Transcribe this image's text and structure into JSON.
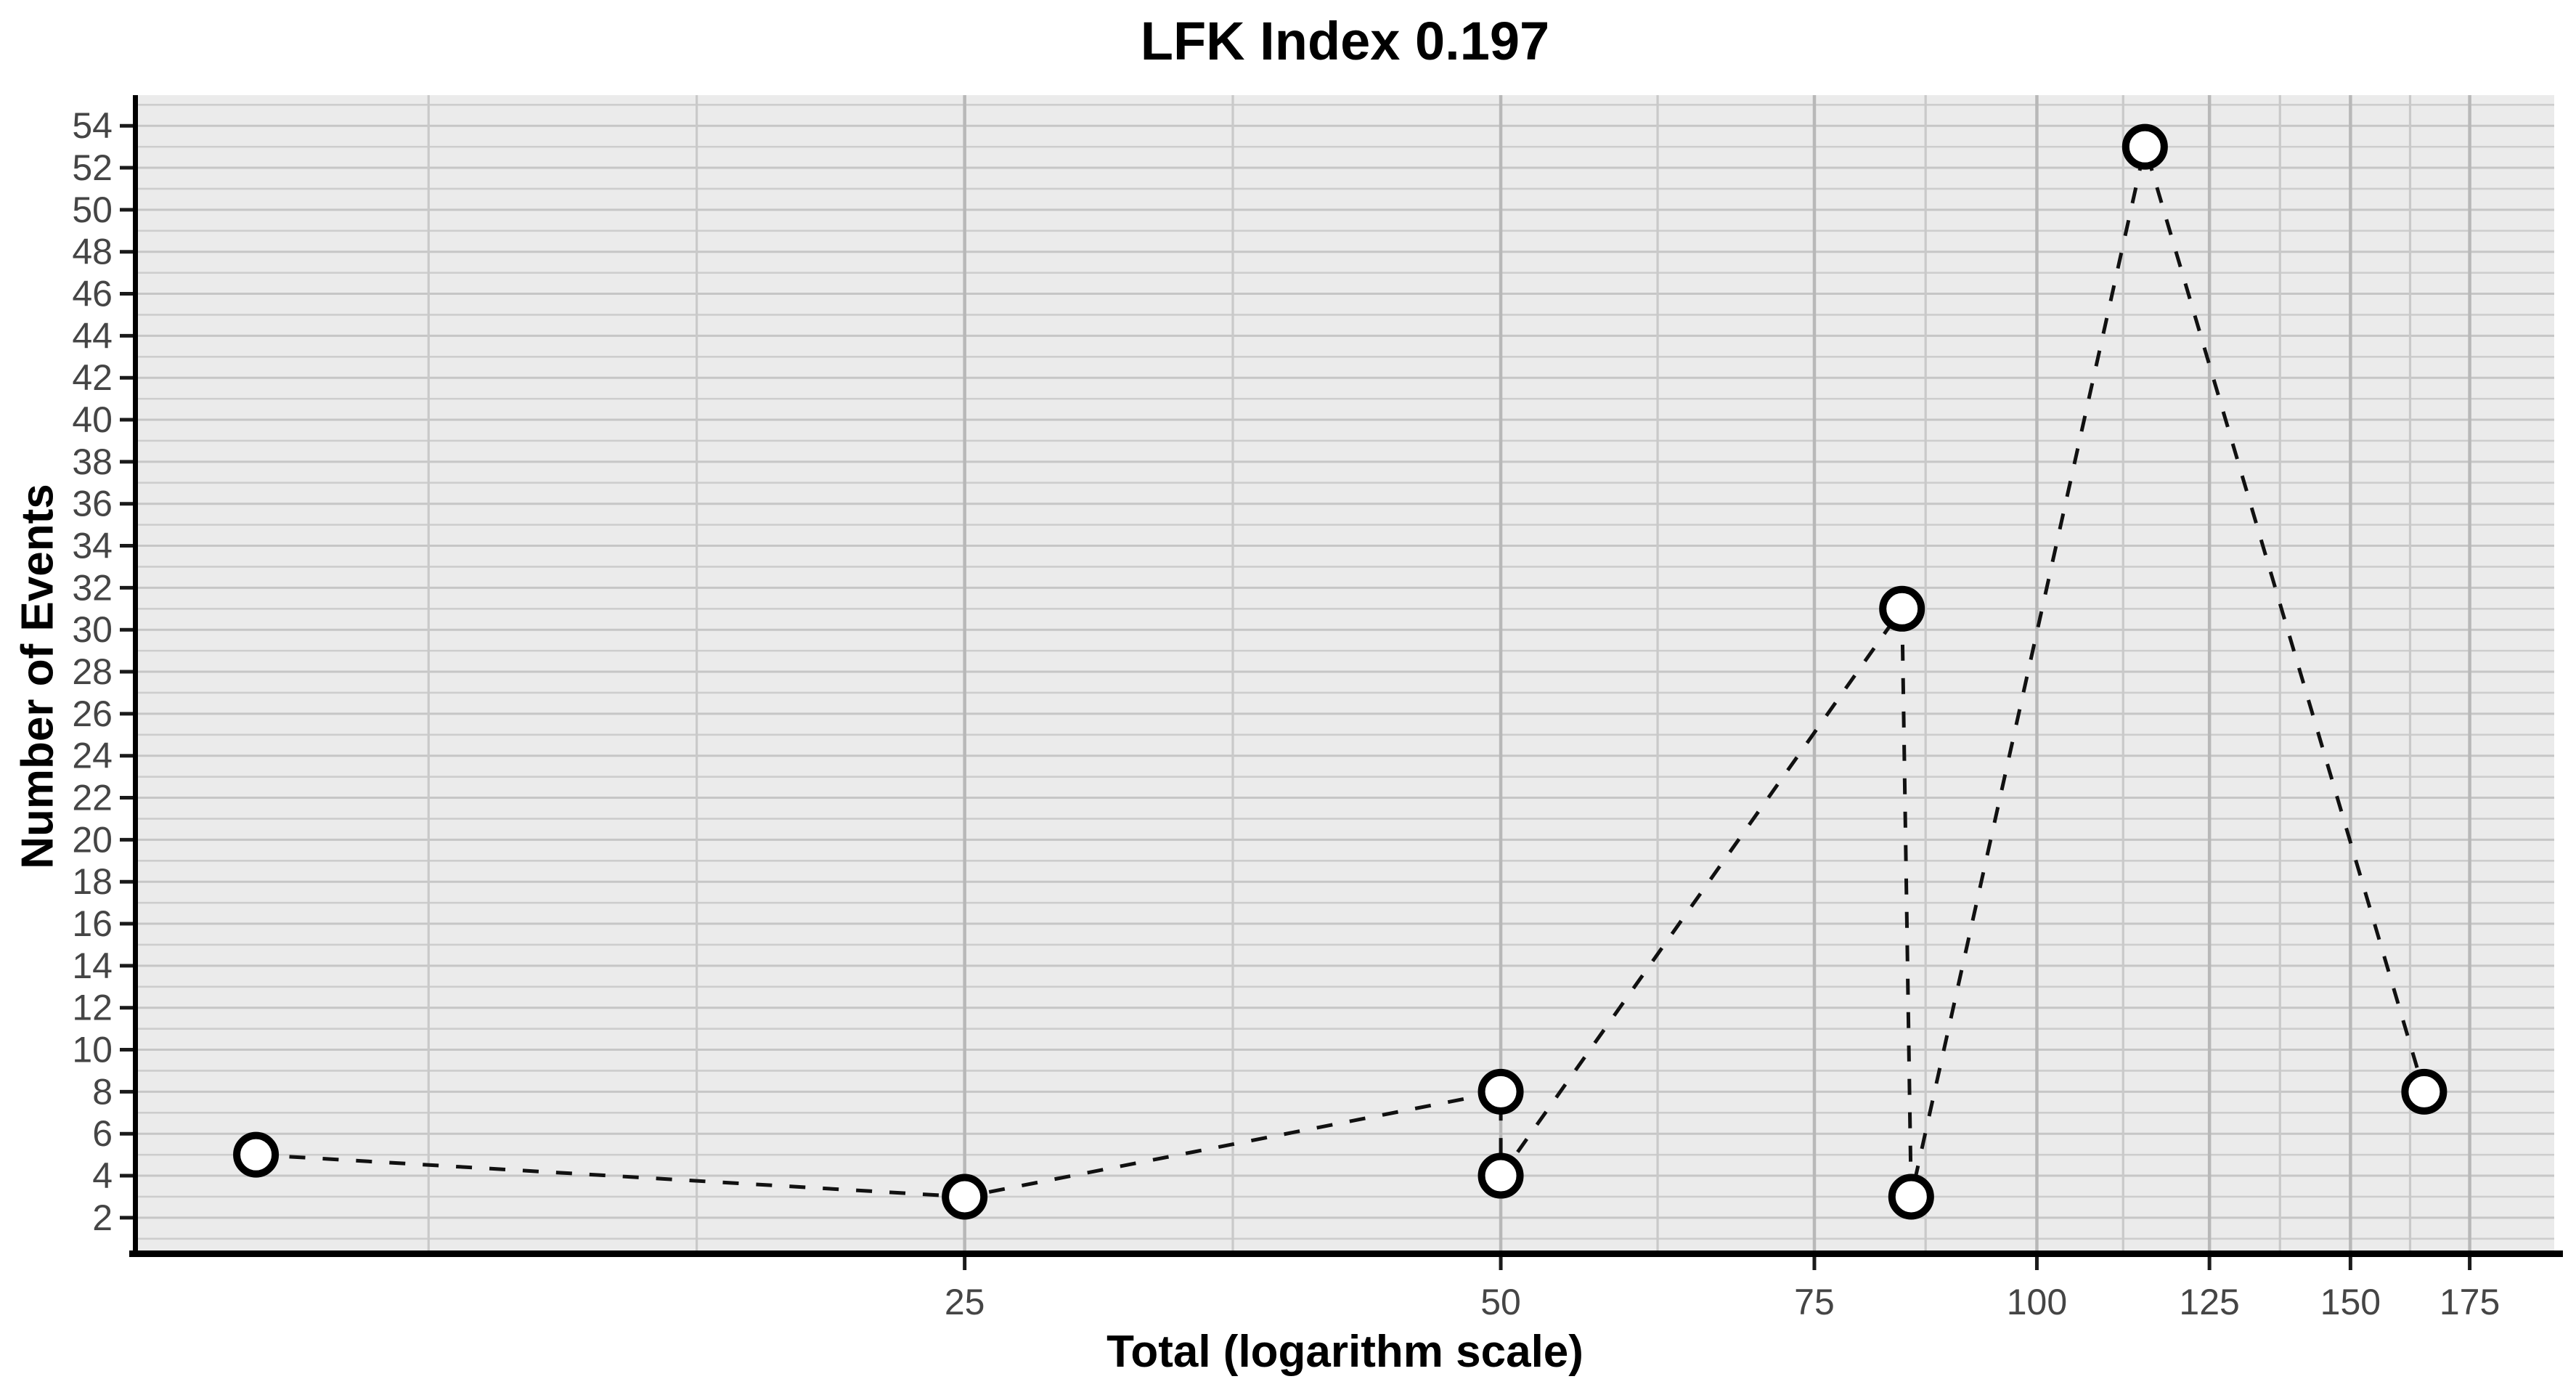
{
  "figure": {
    "background_color": "#ffffff",
    "panel_background_color": "#EBEBEB",
    "grid_color_major_h": "#c6c6c6",
    "grid_color_minor_h": "#cdcdcd",
    "grid_color_major_v": "#b8b8b8",
    "grid_color_minor_v": "#c9c9c9",
    "axis_line_color": "#000000",
    "tick_color": "#1a1a1a",
    "tick_label_color": "#454545",
    "series_line_color": "#111111",
    "marker_fill": "#ffffff",
    "marker_stroke": "#000000"
  },
  "chart_data": {
    "type": "line",
    "subtype": "dashed-line-with-open-circle-markers",
    "title": "LFK Index 0.197",
    "xlabel": "Total (logarithm scale)",
    "ylabel": "Number of Events",
    "x_scale": "log10",
    "x_tick_labels": [
      "25",
      "50",
      "75",
      "100",
      "125",
      "150",
      "175"
    ],
    "x_ticks": [
      25,
      50,
      75,
      100,
      125,
      150,
      175
    ],
    "x_minor_gridlines": [
      12.5,
      17.68,
      35.36,
      61.24,
      86.6,
      111.8,
      136.93,
      162.02
    ],
    "y_tick_labels": [
      "2",
      "4",
      "6",
      "8",
      "10",
      "12",
      "14",
      "16",
      "18",
      "20",
      "22",
      "24",
      "26",
      "28",
      "30",
      "32",
      "34",
      "36",
      "38",
      "40",
      "42",
      "44",
      "46",
      "48",
      "50",
      "52",
      "54"
    ],
    "y_ticks": [
      2,
      4,
      6,
      8,
      10,
      12,
      14,
      16,
      18,
      20,
      22,
      24,
      26,
      28,
      30,
      32,
      34,
      36,
      38,
      40,
      42,
      44,
      46,
      48,
      50,
      52,
      54
    ],
    "y_gridline_step": 1,
    "x_domain_log10": [
      0.9325,
      2.2905
    ],
    "y_domain": [
      0.44,
      55.46
    ],
    "grid": "on",
    "legend": "none",
    "points": [
      {
        "x": 10,
        "y": 5
      },
      {
        "x": 25,
        "y": 3
      },
      {
        "x": 50,
        "y": 8
      },
      {
        "x": 50,
        "y": 4
      },
      {
        "x": 84,
        "y": 31
      },
      {
        "x": 85,
        "y": 3
      },
      {
        "x": 115,
        "y": 53
      },
      {
        "x": 165,
        "y": 8
      }
    ],
    "line_style": "dashed",
    "marker": "open-circle"
  }
}
